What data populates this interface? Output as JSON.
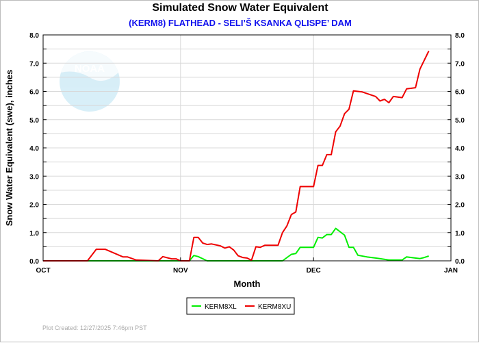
{
  "chart_data": {
    "type": "line",
    "title": "Simulated Snow Water Equivalent",
    "subtitle": "(KERM8) FLATHEAD - SELI’Š KSANKA QLISPE’ DAM",
    "xlabel": "Month",
    "ylabel": "Snow Water Equivalent (swe),  inches",
    "xlim": [
      "2025-10-01",
      "2026-01-01"
    ],
    "ylim": [
      0,
      8
    ],
    "x_tick_labels": [
      {
        "date": "2025-10-01",
        "label": "OCT"
      },
      {
        "date": "2025-11-01",
        "label": "NOV"
      },
      {
        "date": "2025-12-01",
        "label": "DEC"
      },
      {
        "date": "2026-01-01",
        "label": "JAN"
      }
    ],
    "y_tick_labels": [
      "0.0",
      "1.0",
      "2.0",
      "3.0",
      "4.0",
      "5.0",
      "6.0",
      "7.0",
      "8.0"
    ],
    "grid": true,
    "legend_placement": "bottom-center",
    "series": [
      {
        "name": "KERM8XL",
        "color": "#00ee00",
        "points": [
          [
            "2025-10-01",
            0
          ],
          [
            "2025-11-03",
            0
          ],
          [
            "2025-11-04",
            0.19
          ],
          [
            "2025-11-05",
            0.15
          ],
          [
            "2025-11-07",
            0
          ],
          [
            "2025-11-24",
            0
          ],
          [
            "2025-11-26",
            0.23
          ],
          [
            "2025-11-27",
            0.26
          ],
          [
            "2025-11-28",
            0.48
          ],
          [
            "2025-12-01",
            0.48
          ],
          [
            "2025-12-02",
            0.83
          ],
          [
            "2025-12-03",
            0.81
          ],
          [
            "2025-12-04",
            0.93
          ],
          [
            "2025-12-05",
            0.93
          ],
          [
            "2025-12-06",
            1.15
          ],
          [
            "2025-12-08",
            0.91
          ],
          [
            "2025-12-09",
            0.48
          ],
          [
            "2025-12-10",
            0.48
          ],
          [
            "2025-12-11",
            0.2
          ],
          [
            "2025-12-13",
            0.14
          ],
          [
            "2025-12-15",
            0.1
          ],
          [
            "2025-12-18",
            0.03
          ],
          [
            "2025-12-21",
            0.03
          ],
          [
            "2025-12-22",
            0.14
          ],
          [
            "2025-12-25",
            0.08
          ],
          [
            "2025-12-26",
            0.12
          ],
          [
            "2025-12-27",
            0.17
          ]
        ]
      },
      {
        "name": "KERM8XU",
        "color": "#ee0000",
        "points": [
          [
            "2025-10-01",
            0
          ],
          [
            "2025-10-11",
            0
          ],
          [
            "2025-10-13",
            0.41
          ],
          [
            "2025-10-15",
            0.41
          ],
          [
            "2025-10-19",
            0.14
          ],
          [
            "2025-10-20",
            0.14
          ],
          [
            "2025-10-22",
            0.03
          ],
          [
            "2025-10-27",
            0
          ],
          [
            "2025-10-28",
            0.15
          ],
          [
            "2025-10-30",
            0.07
          ],
          [
            "2025-10-31",
            0.07
          ],
          [
            "2025-11-01",
            0
          ],
          [
            "2025-11-03",
            0
          ],
          [
            "2025-11-04",
            0.83
          ],
          [
            "2025-11-05",
            0.83
          ],
          [
            "2025-11-06",
            0.63
          ],
          [
            "2025-11-07",
            0.58
          ],
          [
            "2025-11-08",
            0.6
          ],
          [
            "2025-11-10",
            0.53
          ],
          [
            "2025-11-11",
            0.45
          ],
          [
            "2025-11-12",
            0.5
          ],
          [
            "2025-11-13",
            0.38
          ],
          [
            "2025-11-14",
            0.18
          ],
          [
            "2025-11-15",
            0.12
          ],
          [
            "2025-11-16",
            0.1
          ],
          [
            "2025-11-17",
            0.02
          ],
          [
            "2025-11-18",
            0.5
          ],
          [
            "2025-11-19",
            0.48
          ],
          [
            "2025-11-20",
            0.55
          ],
          [
            "2025-11-23",
            0.55
          ],
          [
            "2025-11-24",
            1.0
          ],
          [
            "2025-11-25",
            1.24
          ],
          [
            "2025-11-26",
            1.64
          ],
          [
            "2025-11-27",
            1.73
          ],
          [
            "2025-11-28",
            2.63
          ],
          [
            "2025-12-01",
            2.63
          ],
          [
            "2025-12-02",
            3.38
          ],
          [
            "2025-12-03",
            3.38
          ],
          [
            "2025-12-04",
            3.76
          ],
          [
            "2025-12-05",
            3.76
          ],
          [
            "2025-12-06",
            4.57
          ],
          [
            "2025-12-07",
            4.77
          ],
          [
            "2025-12-08",
            5.21
          ],
          [
            "2025-12-09",
            5.37
          ],
          [
            "2025-12-10",
            6.02
          ],
          [
            "2025-12-12",
            5.98
          ],
          [
            "2025-12-15",
            5.82
          ],
          [
            "2025-12-16",
            5.66
          ],
          [
            "2025-12-17",
            5.72
          ],
          [
            "2025-12-18",
            5.6
          ],
          [
            "2025-12-19",
            5.82
          ],
          [
            "2025-12-21",
            5.78
          ],
          [
            "2025-12-22",
            6.09
          ],
          [
            "2025-12-24",
            6.13
          ],
          [
            "2025-12-25",
            6.79
          ],
          [
            "2025-12-27",
            7.43
          ]
        ]
      }
    ]
  },
  "logo_text": "NOAA",
  "footer": "Plot Created: 12/27/2025 7:46pm PST"
}
